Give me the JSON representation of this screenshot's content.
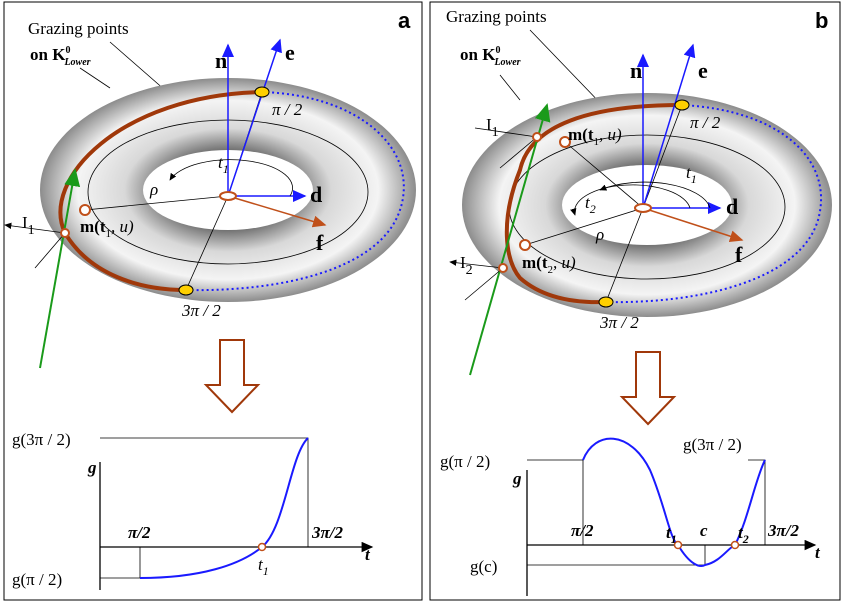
{
  "panels": [
    {
      "letter": "a",
      "annotation": {
        "title": "Grazing points",
        "on": "on K",
        "sup": "0",
        "sub": "Lower"
      },
      "vectors": {
        "n": "n",
        "e": "e",
        "d": "d",
        "f": "f"
      },
      "rho": "ρ",
      "t_labels": [
        {
          "base": "t",
          "sub": "1"
        }
      ],
      "angles": {
        "half": "π / 2",
        "three_half": "3π / 2"
      },
      "points": [
        {
          "base": "I",
          "sub": "1"
        }
      ],
      "m_labels": [
        {
          "pre": "m(t",
          "sub": "1",
          "post": ", u)"
        }
      ],
      "graph": {
        "y_axis": "g",
        "x_axis": "t",
        "y_labels": [
          "g(3π / 2)",
          "g(π / 2)"
        ],
        "x_labels": [
          "π/2",
          "3π/2"
        ],
        "t_labels": [
          {
            "base": "t",
            "sub": "1"
          }
        ]
      }
    },
    {
      "letter": "b",
      "annotation": {
        "title": "Grazing points",
        "on": "on K",
        "sup": "0",
        "sub": "Lower"
      },
      "vectors": {
        "n": "n",
        "e": "e",
        "d": "d",
        "f": "f"
      },
      "rho": "ρ",
      "t_labels": [
        {
          "base": "t",
          "sub": "1"
        },
        {
          "base": "t",
          "sub": "2"
        }
      ],
      "angles": {
        "half": "π / 2",
        "three_half": "3π / 2"
      },
      "points": [
        {
          "base": "I",
          "sub": "1"
        },
        {
          "base": "I",
          "sub": "2"
        }
      ],
      "m_labels": [
        {
          "pre": "m(t",
          "sub": "1",
          "post": ", u)"
        },
        {
          "pre": "m(t",
          "sub": "2",
          "post": ", u)"
        }
      ],
      "graph": {
        "y_axis": "g",
        "x_axis": "t",
        "y_labels": [
          "g(π / 2)",
          "g(3π / 2)",
          "g(c)"
        ],
        "x_labels": [
          "π/2",
          "c",
          "3π/2"
        ],
        "t_labels": [
          {
            "base": "t",
            "sub": "1"
          },
          {
            "base": "t",
            "sub": "2"
          }
        ]
      }
    }
  ]
}
